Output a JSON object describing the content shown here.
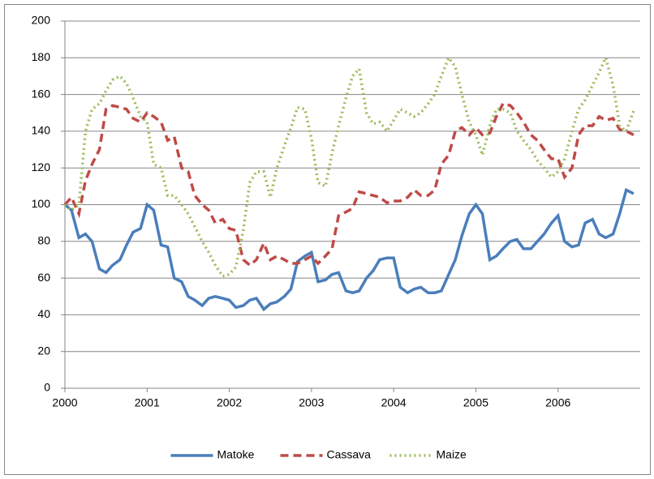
{
  "chart_data": {
    "type": "line",
    "x": [
      2000,
      2000.08,
      2000.17,
      2000.25,
      2000.33,
      2000.42,
      2000.5,
      2000.58,
      2000.67,
      2000.75,
      2000.83,
      2000.92,
      2001,
      2001.08,
      2001.17,
      2001.25,
      2001.33,
      2001.42,
      2001.5,
      2001.58,
      2001.67,
      2001.75,
      2001.83,
      2001.92,
      2002,
      2002.08,
      2002.17,
      2002.25,
      2002.33,
      2002.42,
      2002.5,
      2002.58,
      2002.67,
      2002.75,
      2002.83,
      2002.92,
      2003,
      2003.08,
      2003.17,
      2003.25,
      2003.33,
      2003.42,
      2003.5,
      2003.58,
      2003.67,
      2003.75,
      2003.83,
      2003.92,
      2004,
      2004.08,
      2004.17,
      2004.25,
      2004.33,
      2004.42,
      2004.5,
      2004.58,
      2004.67,
      2004.75,
      2004.83,
      2004.92,
      2005,
      2005.08,
      2005.17,
      2005.25,
      2005.33,
      2005.42,
      2005.5,
      2005.58,
      2005.67,
      2005.75,
      2005.83,
      2005.92,
      2006,
      2006.08,
      2006.17,
      2006.25,
      2006.33,
      2006.42,
      2006.5,
      2006.58,
      2006.67,
      2006.75,
      2006.83,
      2006.92
    ],
    "series": [
      {
        "name": "Matoke",
        "color": "#4a7ebb",
        "dash": "solid",
        "values": [
          100,
          97,
          82,
          84,
          80,
          65,
          63,
          67,
          70,
          78,
          85,
          87,
          100,
          97,
          78,
          77,
          60,
          58,
          50,
          48,
          45,
          49,
          50,
          49,
          48,
          44,
          45,
          48,
          49,
          43,
          46,
          47,
          50,
          54,
          69,
          72,
          74,
          58,
          59,
          62,
          63,
          53,
          52,
          53,
          60,
          64,
          70,
          71,
          71,
          55,
          52,
          54,
          55,
          52,
          52,
          53,
          62,
          70,
          83,
          95,
          100,
          95,
          70,
          72,
          76,
          80,
          81,
          76,
          76,
          80,
          84,
          90,
          94,
          80,
          77,
          78,
          90,
          92,
          84,
          82,
          84,
          95,
          108,
          106
        ]
      },
      {
        "name": "Cassava",
        "color": "#be4b48",
        "dash": "dashed",
        "values": [
          100,
          104,
          95,
          113,
          122,
          130,
          152,
          154,
          153,
          152,
          147,
          145,
          150,
          148,
          145,
          135,
          137,
          120,
          118,
          105,
          100,
          97,
          90,
          92,
          87,
          86,
          70,
          67,
          70,
          79,
          70,
          72,
          70,
          68,
          68,
          70,
          72,
          68,
          72,
          76,
          94,
          96,
          98,
          107,
          106,
          105,
          104,
          101,
          102,
          102,
          104,
          108,
          105,
          105,
          108,
          122,
          127,
          140,
          142,
          138,
          142,
          138,
          139,
          148,
          155,
          154,
          150,
          145,
          138,
          135,
          130,
          125,
          125,
          115,
          120,
          138,
          143,
          143,
          148,
          146,
          147,
          141,
          140,
          138
        ]
      },
      {
        "name": "Maize",
        "color": "#9bbb59",
        "dash": "dotted",
        "values": [
          100,
          97,
          100,
          140,
          152,
          155,
          162,
          168,
          170,
          166,
          158,
          148,
          145,
          122,
          120,
          105,
          105,
          100,
          95,
          88,
          80,
          74,
          67,
          61,
          62,
          66,
          86,
          112,
          118,
          118,
          104,
          120,
          132,
          142,
          153,
          152,
          136,
          112,
          110,
          128,
          143,
          158,
          170,
          174,
          150,
          144,
          145,
          140,
          146,
          152,
          150,
          148,
          150,
          155,
          160,
          170,
          180,
          175,
          160,
          145,
          138,
          127,
          143,
          152,
          152,
          150,
          140,
          135,
          130,
          124,
          120,
          115,
          118,
          125,
          140,
          152,
          157,
          165,
          172,
          180,
          165,
          143,
          140,
          151
        ]
      }
    ],
    "xlim": [
      2000,
      2007
    ],
    "xticks": [
      2000,
      2001,
      2002,
      2003,
      2004,
      2005,
      2006
    ],
    "ylim": [
      0,
      200
    ],
    "yticks": [
      0,
      20,
      40,
      60,
      80,
      100,
      120,
      140,
      160,
      180,
      200
    ],
    "grid": true,
    "legend": "bottom"
  }
}
